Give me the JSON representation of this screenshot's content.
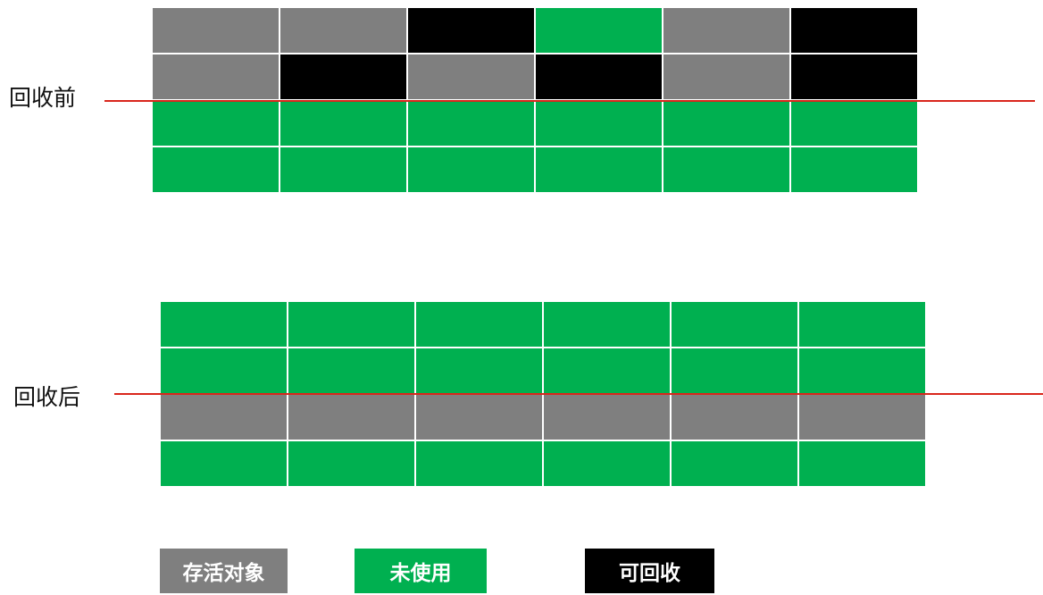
{
  "labels": {
    "before": "回收前",
    "after": "回收后"
  },
  "legend": {
    "live": "存活对象",
    "free": "未使用",
    "garbage": "可回收"
  },
  "colors": {
    "live": "#7f7f7f",
    "free": "#00b050",
    "garbage": "#000000",
    "divider": "#d9261c"
  },
  "before_grid": [
    [
      "live",
      "live",
      "garbage",
      "free",
      "live",
      "garbage"
    ],
    [
      "live",
      "garbage",
      "live",
      "garbage",
      "live",
      "garbage"
    ],
    [
      "free",
      "free",
      "free",
      "free",
      "free",
      "free"
    ],
    [
      "free",
      "free",
      "free",
      "free",
      "free",
      "free"
    ]
  ],
  "after_grid": [
    [
      "free",
      "free",
      "free",
      "free",
      "free",
      "free"
    ],
    [
      "free",
      "free",
      "free",
      "free",
      "free",
      "free"
    ],
    [
      "live",
      "live",
      "live",
      "live",
      "live",
      "live"
    ],
    [
      "free",
      "free",
      "free",
      "free",
      "free",
      "free"
    ]
  ]
}
